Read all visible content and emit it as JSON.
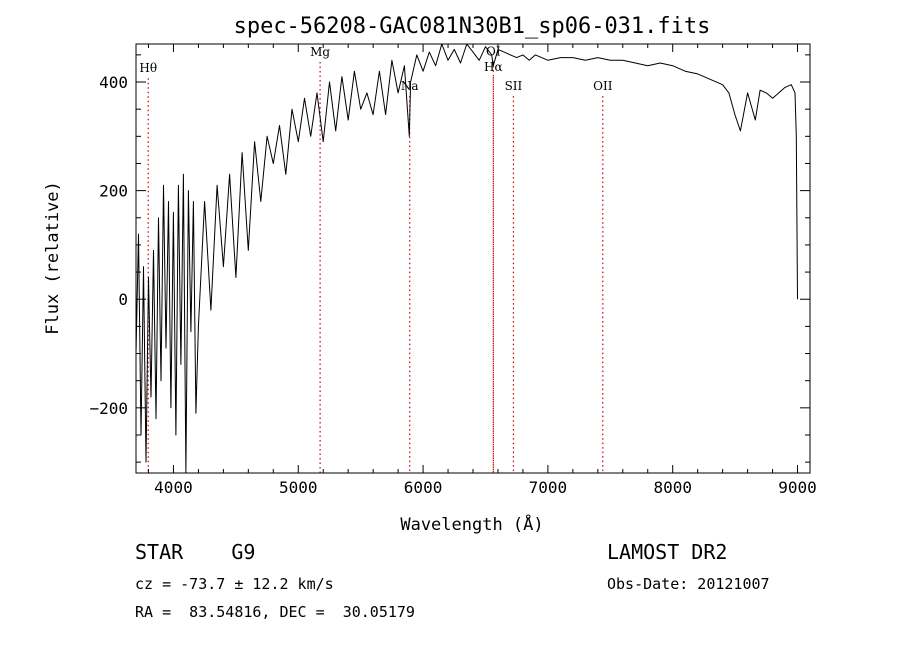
{
  "chart_data": {
    "type": "line",
    "title": "spec-56208-GAC081N30B1_sp06-031.fits",
    "xlabel": "Wavelength (Å)",
    "ylabel": "Flux (relative)",
    "xlim": [
      3700,
      9100
    ],
    "ylim": [
      -320,
      470
    ],
    "xticks": [
      4000,
      5000,
      6000,
      7000,
      8000,
      9000
    ],
    "yticks": [
      -200,
      0,
      200,
      400
    ],
    "line_color": "#000000",
    "marker_color": "#cc0000",
    "spectral_lines": [
      {
        "label": "Hθ",
        "wavelength": 3798,
        "label_flux": 418
      },
      {
        "label": "Mg",
        "wavelength": 5175,
        "label_flux": 448
      },
      {
        "label": "Na",
        "wavelength": 5893,
        "label_flux": 385
      },
      {
        "label": "OI",
        "wavelength": 6563,
        "label_flux": 449
      },
      {
        "label": "Hα",
        "wavelength": 6563,
        "label_flux": 420
      },
      {
        "label": "SII",
        "wavelength": 6724,
        "label_flux": 385
      },
      {
        "label": "OII",
        "wavelength": 7440,
        "label_flux": 385
      }
    ],
    "series": [
      {
        "x": [
          3700,
          3720,
          3740,
          3760,
          3780,
          3800,
          3820,
          3840,
          3860,
          3880,
          3900,
          3920,
          3940,
          3960,
          3980,
          4000,
          4020,
          4040,
          4060,
          4080,
          4100,
          4120,
          4140,
          4160,
          4180,
          4200,
          4250,
          4300,
          4350,
          4400,
          4450,
          4500,
          4550,
          4600,
          4650,
          4700,
          4750,
          4800,
          4850,
          4900,
          4950,
          5000,
          5050,
          5100,
          5150,
          5200,
          5250,
          5300,
          5350,
          5400,
          5450,
          5500,
          5550,
          5600,
          5650,
          5700,
          5750,
          5800,
          5850,
          5890,
          5900,
          5950,
          6000,
          6050,
          6100,
          6150,
          6200,
          6250,
          6300,
          6350,
          6400,
          6450,
          6500,
          6550,
          6563,
          6600,
          6650,
          6700,
          6750,
          6800,
          6850,
          6900,
          6950,
          7000,
          7100,
          7200,
          7300,
          7400,
          7500,
          7600,
          7700,
          7800,
          7900,
          8000,
          8100,
          8200,
          8300,
          8400,
          8450,
          8498,
          8542,
          8600,
          8662,
          8700,
          8750,
          8800,
          8850,
          8900,
          8950,
          8980,
          8990,
          9000
        ],
        "y": [
          -100,
          120,
          -250,
          60,
          -300,
          40,
          -180,
          90,
          -220,
          150,
          -150,
          210,
          -90,
          180,
          -200,
          160,
          -250,
          210,
          -120,
          230,
          -320,
          200,
          -60,
          180,
          -210,
          -50,
          180,
          -20,
          210,
          60,
          230,
          40,
          270,
          90,
          290,
          180,
          300,
          250,
          320,
          230,
          350,
          290,
          370,
          300,
          380,
          290,
          400,
          310,
          410,
          330,
          420,
          350,
          380,
          340,
          420,
          340,
          440,
          380,
          430,
          300,
          400,
          450,
          420,
          455,
          430,
          470,
          440,
          460,
          435,
          470,
          455,
          440,
          465,
          450,
          430,
          460,
          455,
          450,
          445,
          450,
          440,
          450,
          445,
          440,
          445,
          445,
          440,
          445,
          440,
          440,
          435,
          430,
          435,
          430,
          420,
          415,
          405,
          395,
          380,
          340,
          310,
          380,
          330,
          385,
          380,
          370,
          380,
          390,
          395,
          380,
          300,
          0
        ]
      }
    ],
    "info": {
      "object_class": "STAR    G9",
      "velocity": "cz = -73.7 ± 12.2 km/s",
      "coordinates": "RA =  83.54816, DEC =  30.05179",
      "survey": "LAMOST DR2",
      "obs_date": "Obs-Date: 20121007"
    }
  }
}
